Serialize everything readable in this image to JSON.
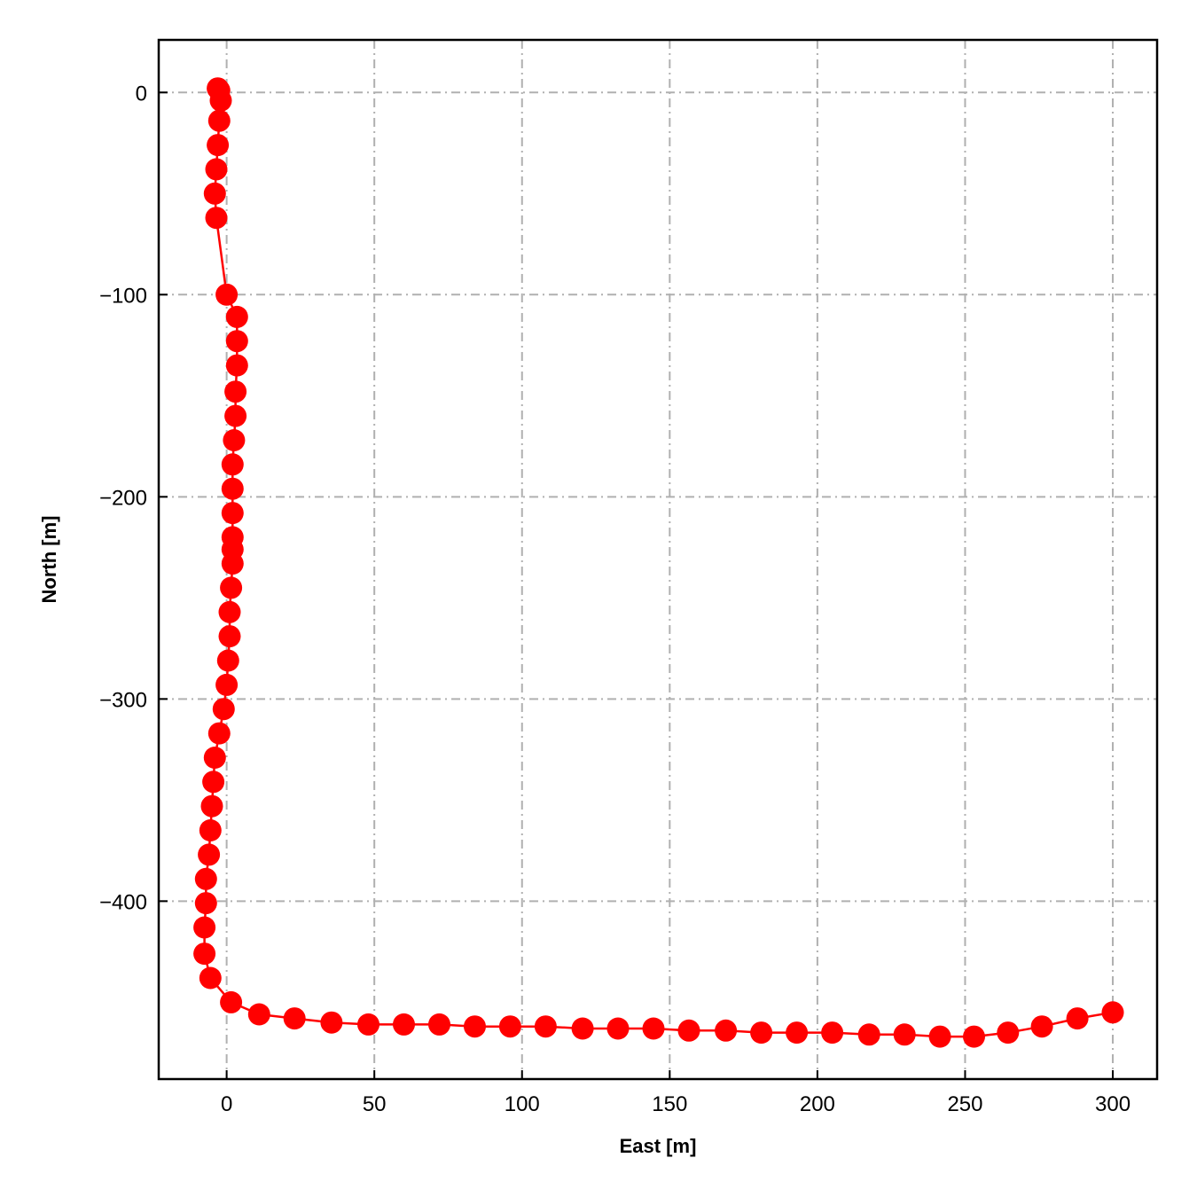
{
  "chart_data": {
    "type": "line",
    "title": "",
    "xlabel": "East [m]",
    "ylabel": "North [m]",
    "xlim": [
      -23,
      315
    ],
    "ylim": [
      -488,
      26
    ],
    "xticks": [
      0,
      50,
      100,
      150,
      200,
      250,
      300
    ],
    "yticks": [
      0,
      -100,
      -200,
      -300,
      -400
    ],
    "xtick_labels": [
      "0",
      "50",
      "100",
      "150",
      "200",
      "250",
      "300"
    ],
    "ytick_labels": [
      "0",
      "−100",
      "−200",
      "−300",
      "−400"
    ],
    "grid": true,
    "grid_style": "dash-dot",
    "legend": "none",
    "series": [
      {
        "color": "#ff0000",
        "marker": "circle",
        "x": [
          -3,
          -2.5,
          -2,
          -2.5,
          -3,
          -3.5,
          -4,
          -3.5,
          0,
          3.5,
          3.5,
          3.5,
          3,
          3,
          2.5,
          2,
          2,
          2,
          2,
          2,
          2,
          1.5,
          1,
          1,
          0.5,
          0,
          -1,
          -2.5,
          -4,
          -4.5,
          -5,
          -5.5,
          -6,
          -7,
          -7,
          -7.5,
          -7.5,
          -5.5,
          1.5,
          11,
          23,
          35.5,
          48,
          60,
          72,
          84,
          96,
          108,
          120.5,
          132.5,
          144.5,
          156.5,
          169,
          181,
          193,
          205,
          217.5,
          229.5,
          241.5,
          253,
          264.5,
          276,
          288,
          300
        ],
        "y": [
          2,
          1,
          -4,
          -14,
          -26,
          -38,
          -50,
          -62,
          -100,
          -111,
          -123,
          -135,
          -148,
          -160,
          -172,
          -184,
          -196,
          -208,
          -220,
          -226,
          -233,
          -245,
          -257,
          -269,
          -281,
          -293,
          -305,
          -317,
          -329,
          -341,
          -353,
          -365,
          -377,
          -389,
          -401,
          -413,
          -426,
          -438,
          -450,
          -456,
          -458,
          -460,
          -461,
          -461,
          -461,
          -462,
          -462,
          -462,
          -463,
          -463,
          -463,
          -464,
          -464,
          -465,
          -465,
          -465,
          -466,
          -466,
          -467,
          -467,
          -465,
          -462,
          -458,
          -455
        ]
      }
    ]
  }
}
